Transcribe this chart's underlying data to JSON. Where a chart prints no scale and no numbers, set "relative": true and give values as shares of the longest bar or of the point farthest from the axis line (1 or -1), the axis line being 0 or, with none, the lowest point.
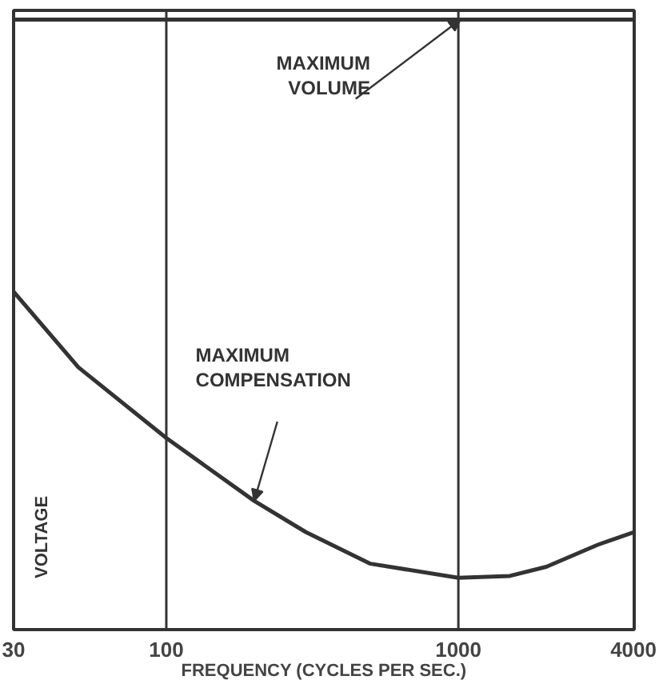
{
  "chart_data": {
    "type": "line",
    "relative": true,
    "xlabel": "FREQUENCY (CYCLES PER SEC.)",
    "ylabel": "VOLTAGE",
    "log": "x",
    "xlim": [
      30,
      4000
    ],
    "xticks": [
      30,
      100,
      1000,
      4000
    ],
    "ref_lines": [
      {
        "axis": "x",
        "value": 100
      },
      {
        "axis": "x",
        "value": 1000
      }
    ],
    "legend": false,
    "marker": "none",
    "line_style": "solid",
    "series": [
      {
        "name": "MAXIMUM VOLUME",
        "color": "#333333",
        "x": [
          30,
          4000
        ],
        "values": [
          1,
          1
        ]
      },
      {
        "name": "MAXIMUM COMPENSATION",
        "color": "#333333",
        "x": [
          30,
          50,
          100,
          200,
          300,
          500,
          1000,
          1500,
          2000,
          3000,
          4000
        ],
        "values": [
          0.554,
          0.43,
          0.314,
          0.211,
          0.16,
          0.108,
          0.085,
          0.088,
          0.103,
          0.139,
          0.16
        ]
      }
    ]
  }
}
